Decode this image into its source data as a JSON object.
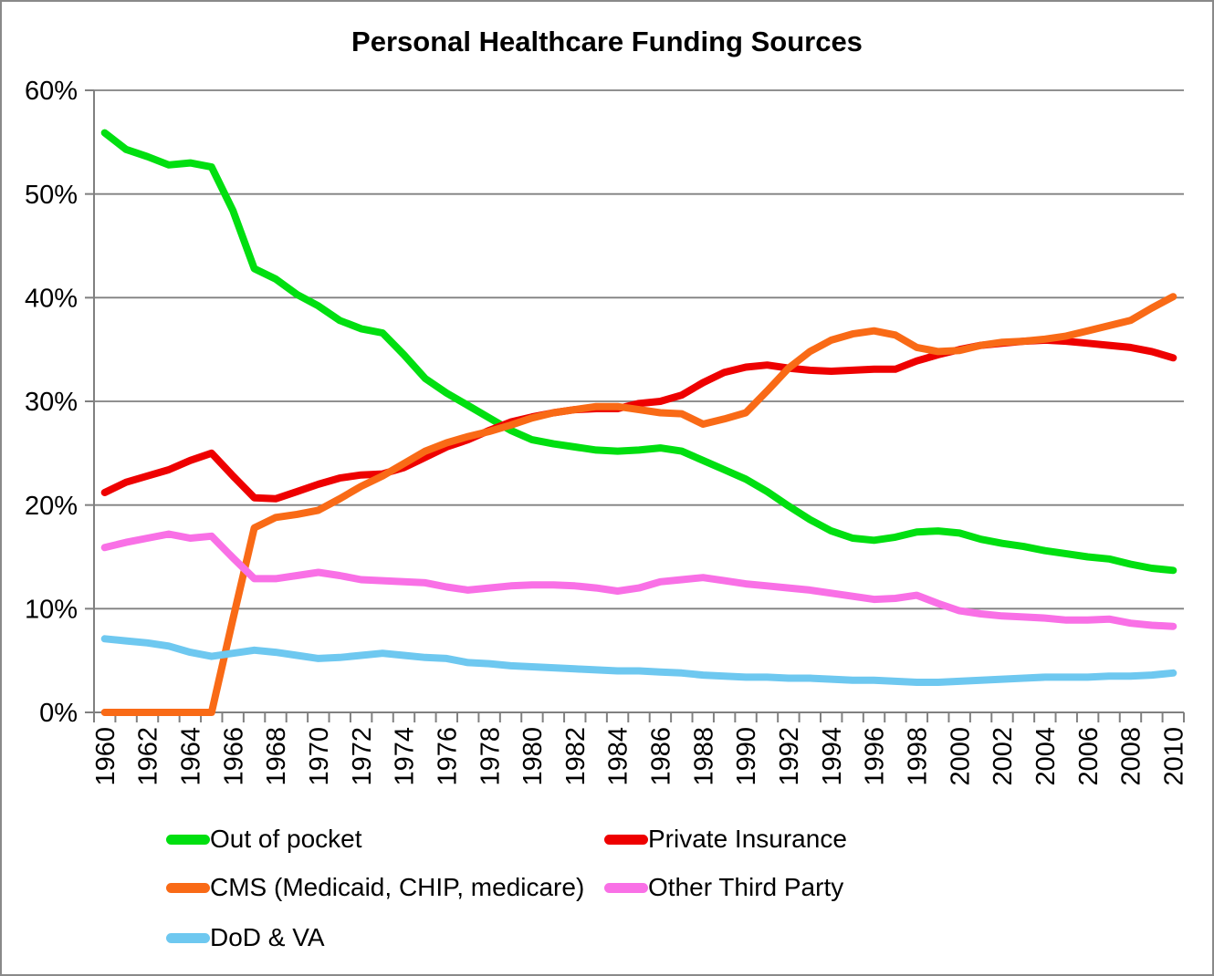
{
  "chart_data": {
    "type": "line",
    "title": "Personal Healthcare Funding Sources",
    "xlabel": "",
    "ylabel": "",
    "ylim": [
      0,
      60
    ],
    "y_tick_step": 10,
    "y_tick_labels": [
      "0%",
      "10%",
      "20%",
      "30%",
      "40%",
      "50%",
      "60%"
    ],
    "x": [
      1960,
      1961,
      1962,
      1963,
      1964,
      1965,
      1966,
      1967,
      1968,
      1969,
      1970,
      1971,
      1972,
      1973,
      1974,
      1975,
      1976,
      1977,
      1978,
      1979,
      1980,
      1981,
      1982,
      1983,
      1984,
      1985,
      1986,
      1987,
      1988,
      1989,
      1990,
      1991,
      1992,
      1993,
      1994,
      1995,
      1996,
      1997,
      1998,
      1999,
      2000,
      2001,
      2002,
      2003,
      2004,
      2005,
      2006,
      2007,
      2008,
      2009,
      2010
    ],
    "x_tick_labels": [
      "1960",
      "1962",
      "1964",
      "1966",
      "1968",
      "1970",
      "1972",
      "1974",
      "1976",
      "1978",
      "1980",
      "1982",
      "1984",
      "1986",
      "1988",
      "1990",
      "1992",
      "1994",
      "1996",
      "1998",
      "2000",
      "2002",
      "2004",
      "2006",
      "2008",
      "2010"
    ],
    "grid": true,
    "legend_position": "bottom",
    "series": [
      {
        "name": "Out of pocket",
        "color": "#00DF10",
        "values": [
          55.9,
          54.3,
          53.6,
          52.8,
          53.0,
          52.6,
          48.4,
          42.8,
          41.8,
          40.3,
          39.2,
          37.8,
          37.0,
          36.6,
          34.5,
          32.2,
          30.8,
          29.6,
          28.4,
          27.2,
          26.3,
          25.9,
          25.6,
          25.3,
          25.2,
          25.3,
          25.5,
          25.2,
          24.3,
          23.4,
          22.5,
          21.3,
          19.9,
          18.6,
          17.5,
          16.8,
          16.6,
          16.9,
          17.4,
          17.5,
          17.3,
          16.7,
          16.3,
          16.0,
          15.6,
          15.3,
          15.0,
          14.8,
          14.3,
          13.9,
          13.7
        ]
      },
      {
        "name": "Private Insurance",
        "color": "#EE0000",
        "values": [
          21.2,
          22.2,
          22.8,
          23.4,
          24.3,
          25.0,
          22.8,
          20.7,
          20.6,
          21.3,
          22.0,
          22.6,
          22.9,
          23.0,
          23.6,
          24.6,
          25.6,
          26.3,
          27.2,
          28.0,
          28.5,
          28.9,
          29.2,
          29.3,
          29.3,
          29.8,
          30.0,
          30.6,
          31.8,
          32.8,
          33.3,
          33.5,
          33.2,
          33.0,
          32.9,
          33.0,
          33.1,
          33.1,
          33.9,
          34.5,
          35.0,
          35.4,
          35.6,
          35.8,
          35.9,
          35.8,
          35.6,
          35.4,
          35.2,
          34.8,
          34.2
        ]
      },
      {
        "name": "CMS (Medicaid, CHIP, medicare)",
        "color": "#F96A16",
        "values": [
          0,
          0,
          0,
          0,
          0,
          0,
          9.0,
          17.8,
          18.8,
          19.1,
          19.5,
          20.6,
          21.8,
          22.8,
          24.0,
          25.2,
          26.0,
          26.6,
          27.1,
          27.7,
          28.4,
          28.9,
          29.2,
          29.5,
          29.5,
          29.2,
          28.9,
          28.8,
          27.8,
          28.3,
          28.9,
          31.0,
          33.2,
          34.8,
          35.9,
          36.5,
          36.8,
          36.4,
          35.2,
          34.8,
          34.9,
          35.4,
          35.7,
          35.8,
          36.0,
          36.3,
          36.8,
          37.3,
          37.8,
          39.0,
          40.1
        ]
      },
      {
        "name": "Other Third Party",
        "color": "#F970E6",
        "values": [
          15.9,
          16.4,
          16.8,
          17.2,
          16.8,
          17.0,
          14.9,
          12.9,
          12.9,
          13.2,
          13.5,
          13.2,
          12.8,
          12.7,
          12.6,
          12.5,
          12.1,
          11.8,
          12.0,
          12.2,
          12.3,
          12.3,
          12.2,
          12.0,
          11.7,
          12.0,
          12.6,
          12.8,
          13.0,
          12.7,
          12.4,
          12.2,
          12.0,
          11.8,
          11.5,
          11.2,
          10.9,
          11.0,
          11.3,
          10.5,
          9.8,
          9.5,
          9.3,
          9.2,
          9.1,
          8.9,
          8.9,
          9.0,
          8.6,
          8.4,
          8.3
        ]
      },
      {
        "name": "DoD & VA",
        "color": "#6EC8F0",
        "values": [
          7.1,
          6.9,
          6.7,
          6.4,
          5.8,
          5.4,
          5.7,
          6.0,
          5.8,
          5.5,
          5.2,
          5.3,
          5.5,
          5.7,
          5.5,
          5.3,
          5.2,
          4.8,
          4.7,
          4.5,
          4.4,
          4.3,
          4.2,
          4.1,
          4.0,
          4.0,
          3.9,
          3.8,
          3.6,
          3.5,
          3.4,
          3.4,
          3.3,
          3.3,
          3.2,
          3.1,
          3.1,
          3.0,
          2.9,
          2.9,
          3.0,
          3.1,
          3.2,
          3.3,
          3.4,
          3.4,
          3.4,
          3.5,
          3.5,
          3.6,
          3.8
        ]
      }
    ],
    "style": {
      "gridline_color": "#808080",
      "axis_color": "#808080",
      "line_width": 8
    }
  }
}
